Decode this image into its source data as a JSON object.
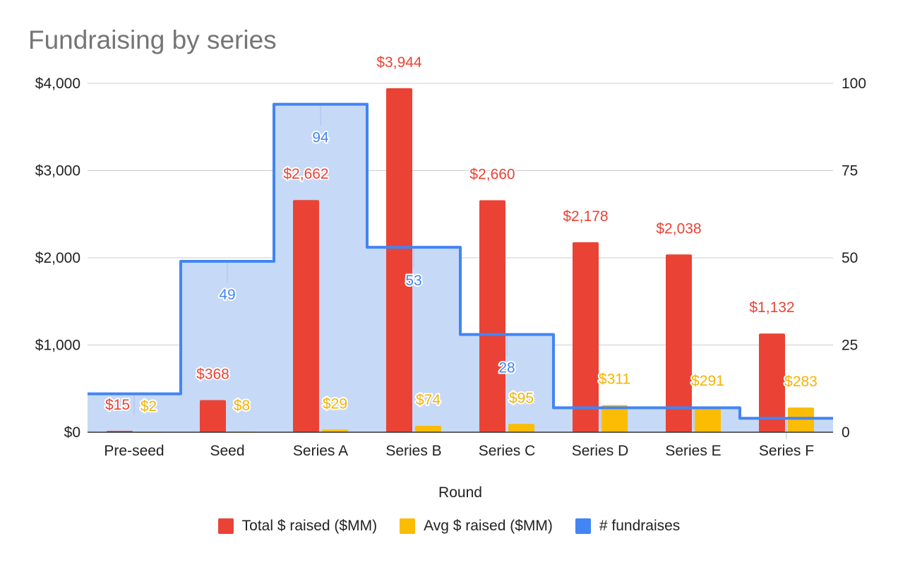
{
  "chart_data": {
    "type": "bar",
    "title": "Fundraising by series",
    "xlabel": "Round",
    "ylabel_left": "",
    "ylabel_right": "",
    "categories": [
      "Pre-seed",
      "Seed",
      "Series A",
      "Series B",
      "Series C",
      "Series D",
      "Series E",
      "Series F"
    ],
    "ylim_left": [
      0,
      4000
    ],
    "yticks_left": [
      "$0",
      "$1,000",
      "$2,000",
      "$3,000",
      "$4,000"
    ],
    "yticks_left_values": [
      0,
      1000,
      2000,
      3000,
      4000
    ],
    "ylim_right": [
      0,
      100
    ],
    "yticks_right": [
      "0",
      "25",
      "50",
      "75",
      "100"
    ],
    "yticks_right_values": [
      0,
      25,
      50,
      75,
      100
    ],
    "grid": true,
    "legend_position": "bottom",
    "series": [
      {
        "name": "Total $ raised ($MM)",
        "type": "bar",
        "axis": "left",
        "color": "#ea4335",
        "values": [
          15,
          368,
          2662,
          3944,
          2660,
          2178,
          2038,
          1132
        ],
        "labels": [
          "$15",
          "$368",
          "$2,662",
          "$3,944",
          "$2,660",
          "$2,178",
          "$2,038",
          "$1,132"
        ]
      },
      {
        "name": "Avg $ raised ($MM)",
        "type": "bar",
        "axis": "left",
        "color": "#fbbc04",
        "values": [
          2,
          8,
          29,
          74,
          95,
          311,
          291,
          283
        ],
        "labels": [
          "$2",
          "$8",
          "$29",
          "$74",
          "$95",
          "$311",
          "$291",
          "$283"
        ]
      },
      {
        "name": "# fundraises",
        "type": "stepped-area",
        "axis": "right",
        "color": "#4285f4",
        "fill": "#c6d9f7",
        "values": [
          11,
          49,
          94,
          53,
          28,
          7,
          7,
          4
        ],
        "labels": [
          "",
          "49",
          "94",
          "53",
          "28",
          "",
          "",
          ""
        ]
      }
    ]
  }
}
